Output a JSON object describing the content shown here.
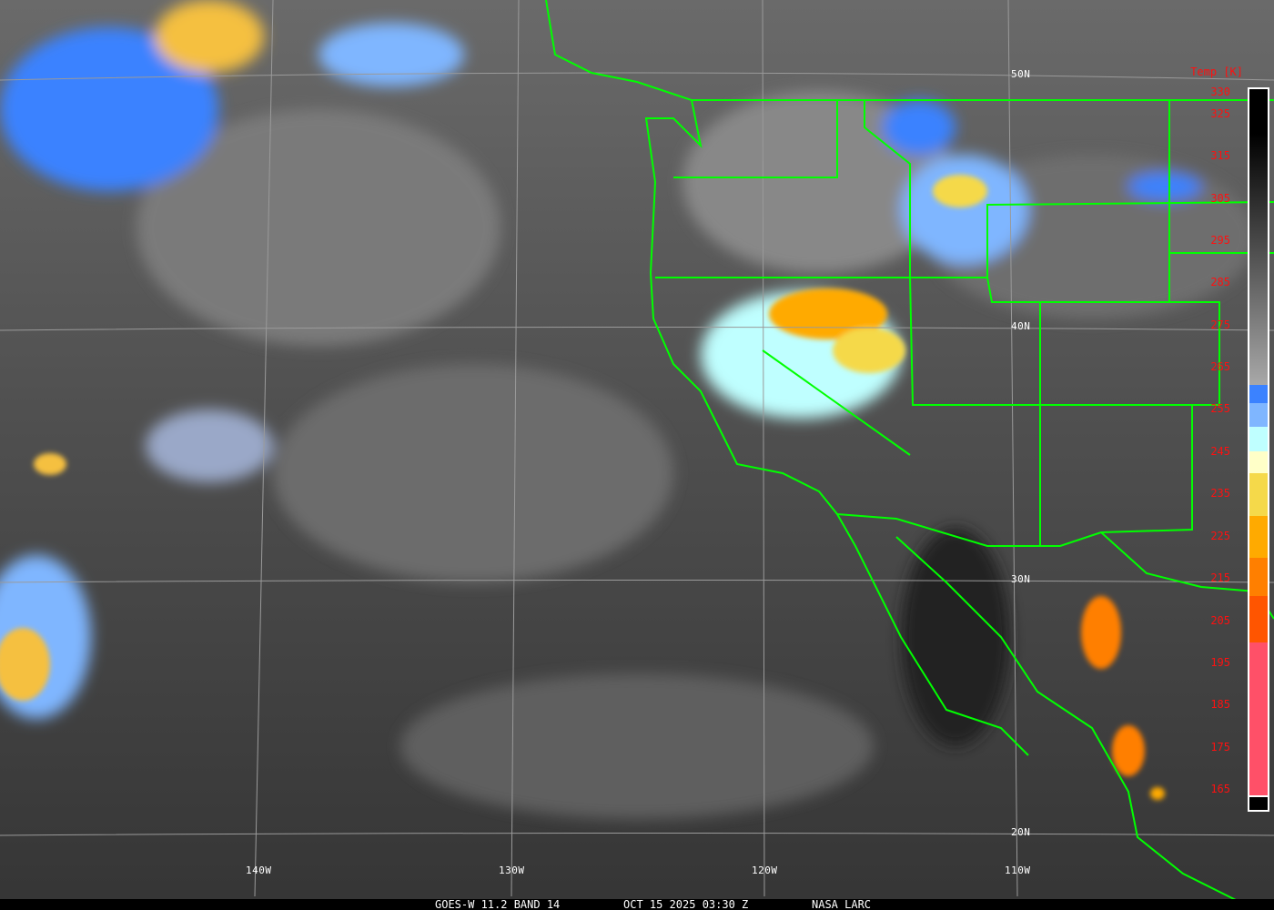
{
  "footer": {
    "satellite": "GOES-W 11.2 BAND 14",
    "datetime": "OCT 15 2025 03:30 Z",
    "source": "NASA LARC"
  },
  "lat_labels": [
    "50N",
    "40N",
    "30N",
    "20N"
  ],
  "lon_labels": [
    "140W",
    "130W",
    "120W",
    "110W"
  ],
  "colorbar": {
    "title": "Temp [K]",
    "ticks": [
      "330",
      "325",
      "315",
      "305",
      "295",
      "285",
      "275",
      "265",
      "255",
      "245",
      "235",
      "225",
      "215",
      "205",
      "195",
      "185",
      "175",
      "165"
    ],
    "colors": {
      "cold_blue": "#3b82ff",
      "light_blue": "#7fb6ff",
      "cyan": "#bfffff",
      "cream": "#ffffc8",
      "yellow": "#f5d94a",
      "orange": "#ffaa00",
      "dark_orange": "#ff7f00",
      "red_orange": "#ff5500",
      "pink": "#ff5068"
    }
  },
  "colors": {
    "boundaries": "#00ff00",
    "grid": "#9a9a9a",
    "label_text": "#ff0000"
  }
}
